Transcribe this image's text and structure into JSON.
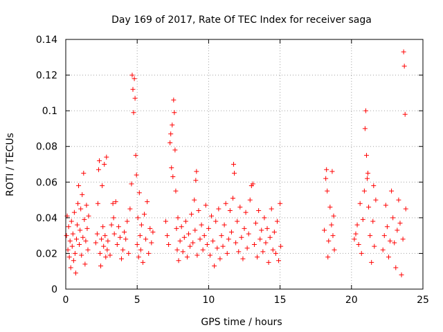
{
  "chart_data": {
    "type": "scatter",
    "title": "Day 169 of 2017, Rate Of TEC Index for receiver saga",
    "xlabel": "GPS time / hours",
    "ylabel": "ROTI / TECUs",
    "xlim": [
      0,
      25
    ],
    "ylim": [
      0,
      0.14
    ],
    "xticks": [
      0,
      5,
      10,
      15,
      20,
      25
    ],
    "xtick_labels": [
      "0",
      "5",
      "10",
      "15",
      "20",
      "25"
    ],
    "yticks": [
      0,
      0.02,
      0.04,
      0.06,
      0.08,
      0.1,
      0.12,
      0.14
    ],
    "ytick_labels": [
      "0",
      "0.02",
      "0.04",
      "0.06",
      "0.08",
      "0.1",
      "0.12",
      "0.14"
    ],
    "grid": true,
    "marker": "plus",
    "color": "#ff0000",
    "series": [
      {
        "name": "ROTI",
        "points": [
          [
            0.05,
            0.03
          ],
          [
            0.1,
            0.041
          ],
          [
            0.15,
            0.022
          ],
          [
            0.2,
            0.035
          ],
          [
            0.25,
            0.018
          ],
          [
            0.3,
            0.027
          ],
          [
            0.35,
            0.012
          ],
          [
            0.4,
            0.038
          ],
          [
            0.45,
            0.024
          ],
          [
            0.5,
            0.031
          ],
          [
            0.55,
            0.016
          ],
          [
            0.6,
            0.043
          ],
          [
            0.65,
            0.02
          ],
          [
            0.7,
            0.009
          ],
          [
            0.75,
            0.028
          ],
          [
            0.8,
            0.036
          ],
          [
            0.85,
            0.048
          ],
          [
            0.9,
            0.058
          ],
          [
            0.95,
            0.025
          ],
          [
            1.0,
            0.033
          ],
          [
            1.05,
            0.045
          ],
          [
            1.1,
            0.019
          ],
          [
            1.15,
            0.053
          ],
          [
            1.2,
            0.029
          ],
          [
            1.25,
            0.065
          ],
          [
            1.3,
            0.039
          ],
          [
            1.35,
            0.014
          ],
          [
            1.4,
            0.027
          ],
          [
            1.45,
            0.047
          ],
          [
            1.5,
            0.034
          ],
          [
            1.55,
            0.022
          ],
          [
            1.6,
            0.041
          ],
          [
            2.1,
            0.026
          ],
          [
            2.2,
            0.031
          ],
          [
            2.25,
            0.048
          ],
          [
            2.3,
            0.067
          ],
          [
            2.35,
            0.072
          ],
          [
            2.4,
            0.02
          ],
          [
            2.45,
            0.013
          ],
          [
            2.5,
            0.028
          ],
          [
            2.55,
            0.058
          ],
          [
            2.6,
            0.035
          ],
          [
            2.65,
            0.024
          ],
          [
            2.7,
            0.07
          ],
          [
            2.75,
            0.03
          ],
          [
            2.8,
            0.018
          ],
          [
            2.85,
            0.074
          ],
          [
            2.9,
            0.022
          ],
          [
            2.95,
            0.027
          ],
          [
            3.1,
            0.019
          ],
          [
            3.2,
            0.036
          ],
          [
            3.3,
            0.048
          ],
          [
            3.35,
            0.04
          ],
          [
            3.4,
            0.031
          ],
          [
            3.5,
            0.049
          ],
          [
            3.6,
            0.025
          ],
          [
            3.7,
            0.035
          ],
          [
            3.8,
            0.029
          ],
          [
            3.9,
            0.017
          ],
          [
            4.0,
            0.022
          ],
          [
            4.1,
            0.032
          ],
          [
            4.2,
            0.028
          ],
          [
            4.3,
            0.038
          ],
          [
            4.4,
            0.02
          ],
          [
            4.5,
            0.045
          ],
          [
            4.6,
            0.059
          ],
          [
            4.65,
            0.12
          ],
          [
            4.7,
            0.112
          ],
          [
            4.75,
            0.099
          ],
          [
            4.8,
            0.118
          ],
          [
            4.85,
            0.107
          ],
          [
            4.9,
            0.075
          ],
          [
            4.95,
            0.064
          ],
          [
            5.0,
            0.025
          ],
          [
            5.05,
            0.04
          ],
          [
            5.1,
            0.018
          ],
          [
            5.15,
            0.054
          ],
          [
            5.2,
            0.03
          ],
          [
            5.25,
            0.022
          ],
          [
            5.3,
            0.036
          ],
          [
            5.4,
            0.015
          ],
          [
            5.5,
            0.042
          ],
          [
            5.6,
            0.028
          ],
          [
            5.7,
            0.049
          ],
          [
            5.8,
            0.02
          ],
          [
            5.9,
            0.034
          ],
          [
            6.0,
            0.026
          ],
          [
            6.1,
            0.032
          ],
          [
            7.0,
            0.038
          ],
          [
            7.1,
            0.03
          ],
          [
            7.2,
            0.025
          ],
          [
            7.3,
            0.082
          ],
          [
            7.35,
            0.087
          ],
          [
            7.4,
            0.068
          ],
          [
            7.45,
            0.092
          ],
          [
            7.5,
            0.063
          ],
          [
            7.55,
            0.106
          ],
          [
            7.6,
            0.099
          ],
          [
            7.65,
            0.078
          ],
          [
            7.7,
            0.055
          ],
          [
            7.75,
            0.034
          ],
          [
            7.8,
            0.022
          ],
          [
            7.85,
            0.04
          ],
          [
            7.9,
            0.016
          ],
          [
            8.0,
            0.027
          ],
          [
            8.1,
            0.035
          ],
          [
            8.2,
            0.021
          ],
          [
            8.3,
            0.029
          ],
          [
            8.4,
            0.038
          ],
          [
            8.5,
            0.018
          ],
          [
            8.6,
            0.031
          ],
          [
            8.7,
            0.024
          ],
          [
            8.8,
            0.042
          ],
          [
            8.9,
            0.026
          ],
          [
            9.0,
            0.05
          ],
          [
            9.05,
            0.033
          ],
          [
            9.1,
            0.061
          ],
          [
            9.15,
            0.066
          ],
          [
            9.2,
            0.019
          ],
          [
            9.3,
            0.044
          ],
          [
            9.4,
            0.028
          ],
          [
            9.5,
            0.036
          ],
          [
            9.6,
            0.022
          ],
          [
            9.7,
            0.03
          ],
          [
            9.8,
            0.047
          ],
          [
            9.9,
            0.025
          ],
          [
            10.0,
            0.034
          ],
          [
            10.1,
            0.019
          ],
          [
            10.2,
            0.041
          ],
          [
            10.3,
            0.027
          ],
          [
            10.4,
            0.013
          ],
          [
            10.5,
            0.038
          ],
          [
            10.6,
            0.023
          ],
          [
            10.7,
            0.045
          ],
          [
            10.8,
            0.017
          ],
          [
            10.9,
            0.03
          ],
          [
            11.0,
            0.024
          ],
          [
            11.1,
            0.036
          ],
          [
            11.2,
            0.048
          ],
          [
            11.3,
            0.02
          ],
          [
            11.4,
            0.028
          ],
          [
            11.5,
            0.044
          ],
          [
            11.6,
            0.032
          ],
          [
            11.7,
            0.051
          ],
          [
            11.75,
            0.07
          ],
          [
            11.8,
            0.065
          ],
          [
            11.9,
            0.026
          ],
          [
            12.0,
            0.038
          ],
          [
            12.1,
            0.021
          ],
          [
            12.2,
            0.046
          ],
          [
            12.3,
            0.029
          ],
          [
            12.4,
            0.017
          ],
          [
            12.5,
            0.034
          ],
          [
            12.6,
            0.043
          ],
          [
            12.7,
            0.023
          ],
          [
            12.8,
            0.031
          ],
          [
            12.9,
            0.05
          ],
          [
            13.0,
            0.058
          ],
          [
            13.1,
            0.059
          ],
          [
            13.2,
            0.025
          ],
          [
            13.3,
            0.037
          ],
          [
            13.4,
            0.018
          ],
          [
            13.5,
            0.044
          ],
          [
            13.6,
            0.028
          ],
          [
            13.7,
            0.033
          ],
          [
            13.8,
            0.021
          ],
          [
            13.9,
            0.04
          ],
          [
            14.0,
            0.026
          ],
          [
            14.1,
            0.034
          ],
          [
            14.2,
            0.015
          ],
          [
            14.3,
            0.029
          ],
          [
            14.4,
            0.045
          ],
          [
            14.5,
            0.022
          ],
          [
            14.6,
            0.032
          ],
          [
            14.7,
            0.02
          ],
          [
            14.8,
            0.038
          ],
          [
            14.9,
            0.016
          ],
          [
            15.0,
            0.048
          ],
          [
            15.05,
            0.024
          ],
          [
            18.1,
            0.033
          ],
          [
            18.2,
            0.062
          ],
          [
            18.25,
            0.067
          ],
          [
            18.3,
            0.055
          ],
          [
            18.35,
            0.018
          ],
          [
            18.4,
            0.027
          ],
          [
            18.5,
            0.046
          ],
          [
            18.6,
            0.036
          ],
          [
            18.65,
            0.066
          ],
          [
            18.7,
            0.03
          ],
          [
            18.75,
            0.041
          ],
          [
            18.8,
            0.022
          ],
          [
            20.2,
            0.028
          ],
          [
            20.3,
            0.031
          ],
          [
            20.4,
            0.036
          ],
          [
            20.5,
            0.025
          ],
          [
            20.6,
            0.048
          ],
          [
            20.7,
            0.02
          ],
          [
            20.8,
            0.039
          ],
          [
            20.9,
            0.055
          ],
          [
            20.95,
            0.09
          ],
          [
            21.0,
            0.1
          ],
          [
            21.05,
            0.075
          ],
          [
            21.1,
            0.062
          ],
          [
            21.15,
            0.065
          ],
          [
            21.2,
            0.046
          ],
          [
            21.3,
            0.03
          ],
          [
            21.4,
            0.015
          ],
          [
            21.5,
            0.038
          ],
          [
            21.55,
            0.058
          ],
          [
            21.6,
            0.024
          ],
          [
            21.7,
            0.05
          ],
          [
            22.2,
            0.022
          ],
          [
            22.3,
            0.03
          ],
          [
            22.4,
            0.047
          ],
          [
            22.5,
            0.035
          ],
          [
            22.6,
            0.018
          ],
          [
            22.7,
            0.027
          ],
          [
            22.8,
            0.055
          ],
          [
            22.9,
            0.04
          ],
          [
            23.0,
            0.026
          ],
          [
            23.1,
            0.012
          ],
          [
            23.2,
            0.033
          ],
          [
            23.3,
            0.05
          ],
          [
            23.4,
            0.037
          ],
          [
            23.5,
            0.008
          ],
          [
            23.6,
            0.028
          ],
          [
            23.65,
            0.133
          ],
          [
            23.7,
            0.125
          ],
          [
            23.75,
            0.098
          ],
          [
            23.8,
            0.045
          ]
        ]
      }
    ]
  }
}
